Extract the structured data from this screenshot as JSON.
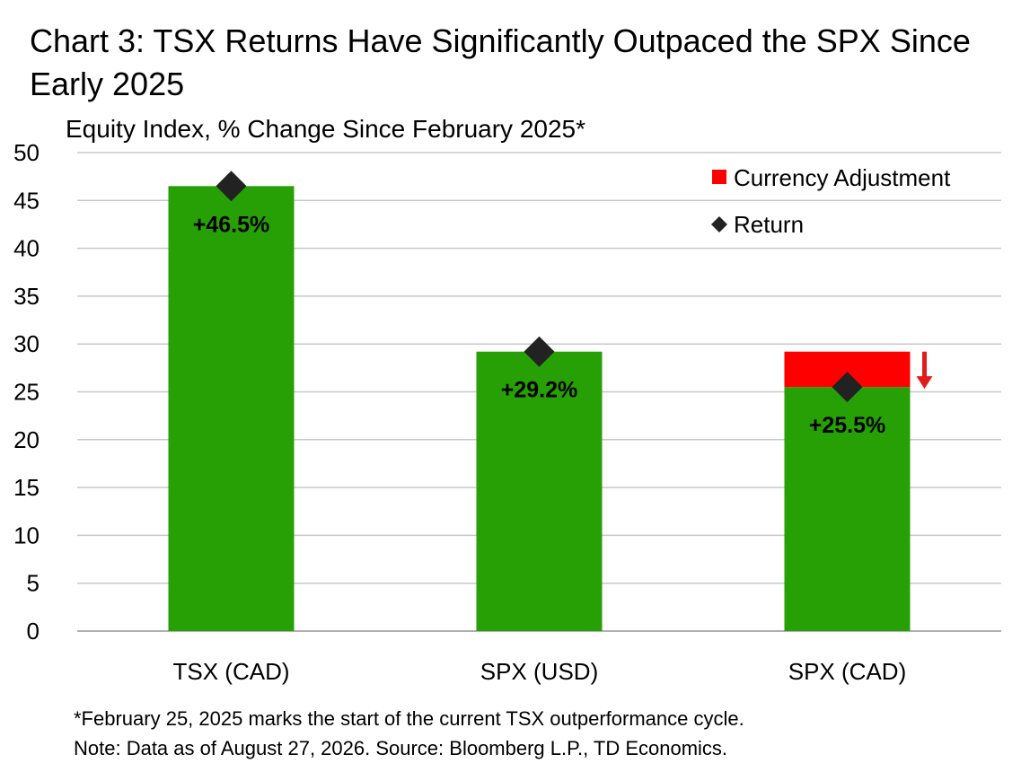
{
  "chart_data": {
    "type": "bar",
    "title": "Chart 3: TSX Returns Have Significantly Outpaced the SPX Since Early 2025",
    "subtitle": "Equity Index, % Change Since February 2025*",
    "categories": [
      "TSX (CAD)",
      "SPX (USD)",
      "SPX (CAD)"
    ],
    "returns": [
      46.5,
      29.2,
      25.5
    ],
    "data_labels": [
      "+46.5%",
      "+29.2%",
      "+25.5%"
    ],
    "currency_adjustment": [
      0,
      0,
      3.7
    ],
    "legend": {
      "placement": "top-right",
      "entries": [
        {
          "name": "Currency Adjustment",
          "marker": "square",
          "color": "#ff0000"
        },
        {
          "name": "Return",
          "marker": "diamond",
          "color": "#222222"
        }
      ]
    },
    "ylim": [
      0,
      50
    ],
    "yticks": [
      0,
      5,
      10,
      15,
      20,
      25,
      30,
      35,
      40,
      45,
      50
    ],
    "grid": "horizontal",
    "colors": {
      "bar": "#26a005",
      "adjustment": "#ff0000",
      "marker": "#222222",
      "grid": "#c8c8c8",
      "arrow": "#e31b1b"
    }
  },
  "notes": [
    "*February 25, 2025 marks the start of the current TSX outperformance cycle.",
    "Note: Data as of August 27, 2026. Source: Bloomberg L.P., TD Economics."
  ]
}
